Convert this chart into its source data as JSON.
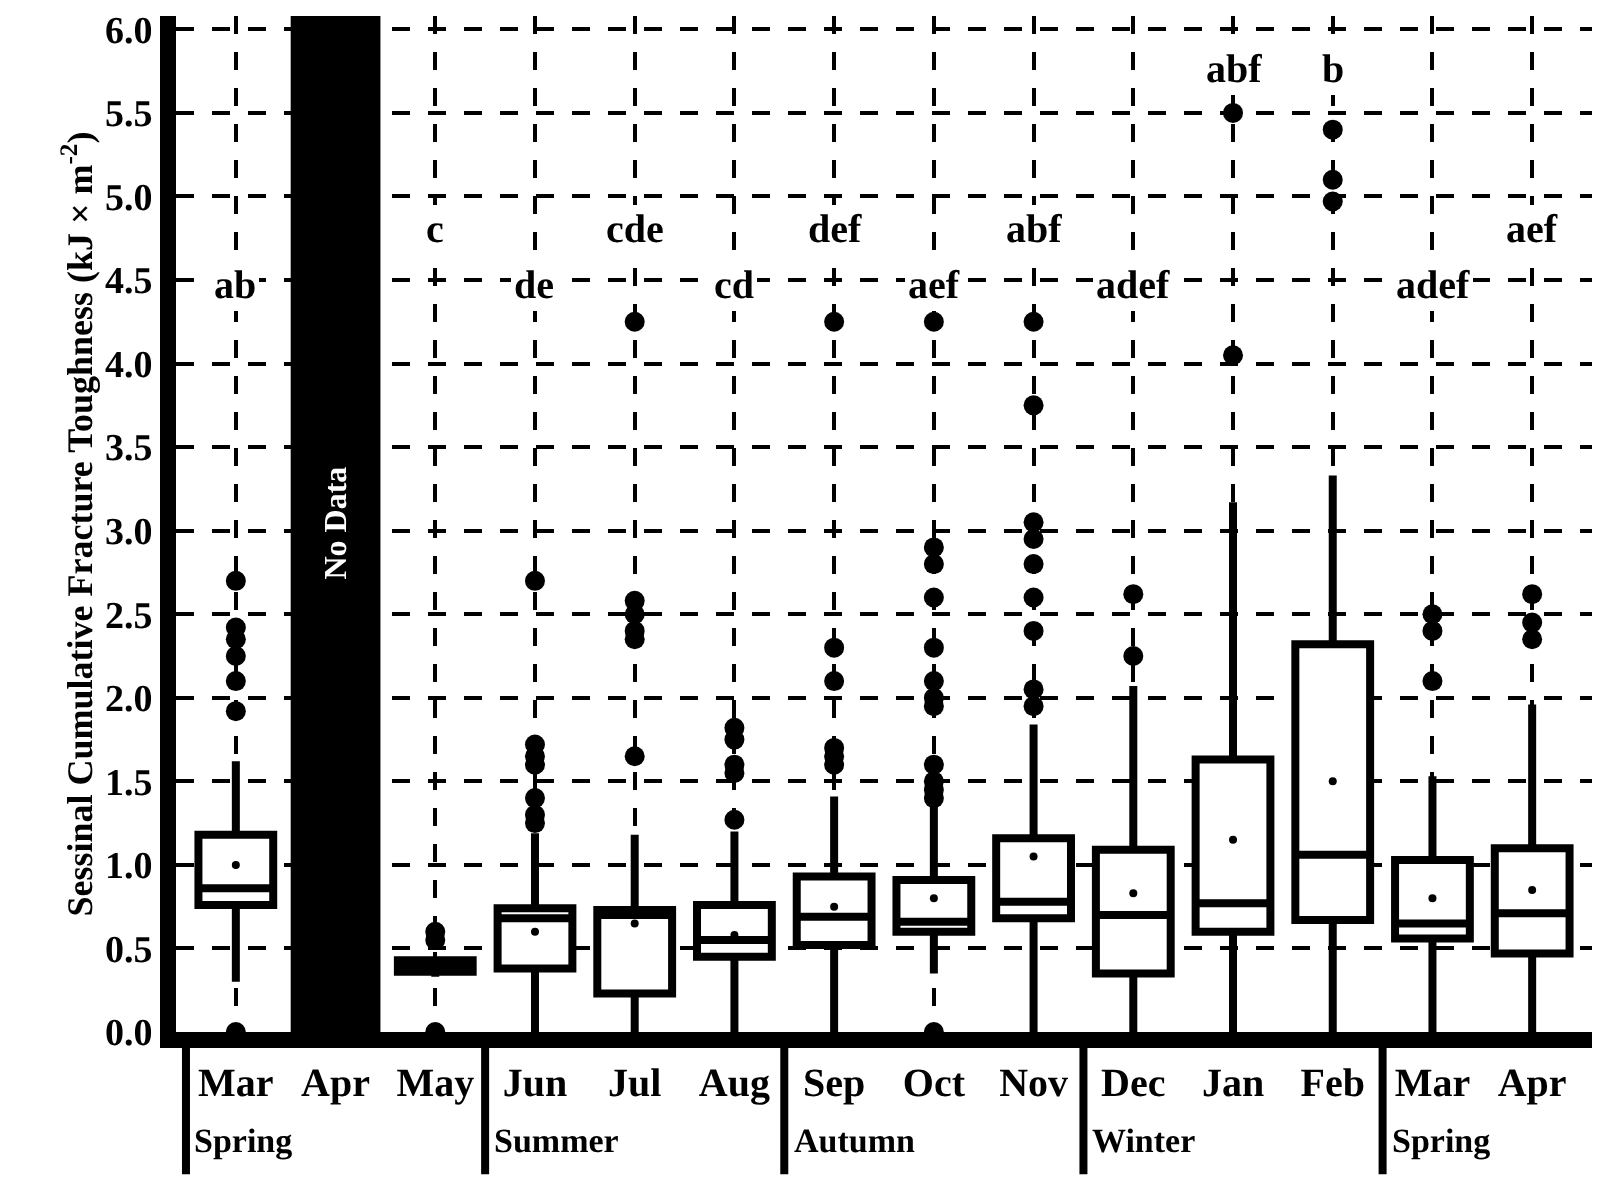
{
  "chart_data": {
    "type": "box",
    "ylabel": "Sessinal Cumulative Fracture Toughness (kJ × m$^{-2}$)",
    "categories": [
      "Mar",
      "Apr",
      "May",
      "Jun",
      "Jul",
      "Aug",
      "Sep",
      "Oct",
      "Nov",
      "Dec",
      "Jan",
      "Feb",
      "Mar",
      "Apr"
    ],
    "boxes": [
      {
        "low": 0.3,
        "q1": 0.76,
        "median": 0.86,
        "q3": 1.18,
        "high": 1.62,
        "mean": 1.0,
        "outliers": [
          0,
          1.92,
          2.1,
          2.25,
          2.35,
          2.42,
          2.7
        ]
      },
      null,
      {
        "low": 0.33,
        "q1": 0.36,
        "median": 0.4,
        "q3": 0.43,
        "high": 0.45,
        "mean": 0.4,
        "outliers": [
          0,
          0.55,
          0.6
        ]
      },
      {
        "low": 0,
        "q1": 0.38,
        "median": 0.68,
        "q3": 0.74,
        "high": 1.19,
        "mean": 0.6,
        "outliers": [
          1.25,
          1.3,
          1.4,
          1.6,
          1.65,
          1.72,
          2.7
        ]
      },
      {
        "low": 0,
        "q1": 0.23,
        "median": 0.7,
        "q3": 0.73,
        "high": 1.18,
        "mean": 0.65,
        "outliers": [
          1.65,
          2.35,
          2.4,
          2.5,
          2.58,
          4.25
        ]
      },
      {
        "low": 0,
        "q1": 0.45,
        "median": 0.55,
        "q3": 0.76,
        "high": 1.2,
        "mean": 0.58,
        "outliers": [
          1.27,
          1.55,
          1.6,
          1.75,
          1.82
        ]
      },
      {
        "low": 0,
        "q1": 0.52,
        "median": 0.69,
        "q3": 0.93,
        "high": 1.41,
        "mean": 0.75,
        "outliers": [
          1.6,
          1.65,
          1.7,
          2.1,
          2.3,
          4.25
        ]
      },
      {
        "low": 0.35,
        "q1": 0.6,
        "median": 0.66,
        "q3": 0.91,
        "high": 1.35,
        "mean": 0.8,
        "outliers": [
          0,
          1.4,
          1.45,
          1.5,
          1.6,
          1.95,
          2.0,
          2.1,
          2.3,
          2.6,
          2.8,
          2.9,
          4.25
        ]
      },
      {
        "low": 0,
        "q1": 0.68,
        "median": 0.78,
        "q3": 1.16,
        "high": 1.84,
        "mean": 1.05,
        "outliers": [
          1.95,
          2.05,
          2.4,
          2.6,
          2.8,
          2.95,
          3.05,
          3.75,
          4.25
        ]
      },
      {
        "low": 0,
        "q1": 0.35,
        "median": 0.7,
        "q3": 1.09,
        "high": 2.07,
        "mean": 0.83,
        "outliers": [
          2.25,
          2.62
        ]
      },
      {
        "low": 0,
        "q1": 0.6,
        "median": 0.77,
        "q3": 1.63,
        "high": 3.17,
        "mean": 1.15,
        "outliers": [
          4.05,
          5.5
        ]
      },
      {
        "low": 0,
        "q1": 0.67,
        "median": 1.06,
        "q3": 2.32,
        "high": 3.33,
        "mean": 1.5,
        "outliers": [
          4.97,
          5.1,
          5.4
        ]
      },
      {
        "low": 0,
        "q1": 0.56,
        "median": 0.65,
        "q3": 1.03,
        "high": 1.53,
        "mean": 0.8,
        "outliers": [
          2.1,
          2.4,
          2.5
        ]
      },
      {
        "low": 0,
        "q1": 0.47,
        "median": 0.71,
        "q3": 1.1,
        "high": 1.96,
        "mean": 0.85,
        "outliers": [
          2.35,
          2.45,
          2.62
        ]
      }
    ],
    "bands": [
      {
        "axis": "x",
        "from": "Apr",
        "to": "Apr",
        "label": "No Data",
        "color": "#000000"
      }
    ],
    "annotations": [
      "ab",
      "c",
      "de",
      "cde",
      "cd",
      "def",
      "aef",
      "abf",
      "adef",
      "abf",
      "b",
      "adef",
      "aef",
      "Spring",
      "Summer",
      "Autumn",
      "Winter",
      "Spring"
    ],
    "ylim": [
      0,
      6.08
    ],
    "yticks": [
      {
        "value": 0,
        "label": "0.0"
      },
      {
        "value": 0.5,
        "label": "0.5"
      },
      {
        "value": 1,
        "label": "1.0"
      },
      {
        "value": 1.5,
        "label": "1.5"
      },
      {
        "value": 2,
        "label": "2.0"
      },
      {
        "value": 2.5,
        "label": "2.5"
      },
      {
        "value": 3,
        "label": "3.0"
      },
      {
        "value": 3.5,
        "label": "3.5"
      },
      {
        "value": 4,
        "label": "4.0"
      },
      {
        "value": 4.5,
        "label": "4.5"
      },
      {
        "value": 5,
        "label": "5.0"
      },
      {
        "value": 5.5,
        "label": "5.5"
      },
      {
        "value": 6,
        "label": "6.0"
      }
    ],
    "grid": true,
    "marker": "circle"
  }
}
